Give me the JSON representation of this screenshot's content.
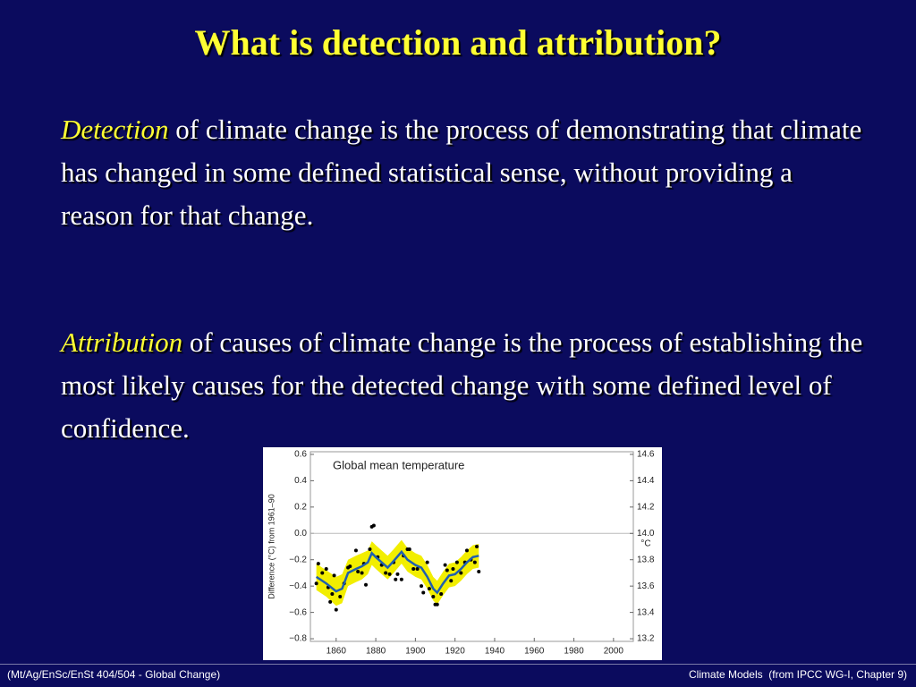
{
  "title": "What is detection and attribution?",
  "paragraphs": [
    {
      "term": "Detection",
      "text": " of climate change is the process of demonstrating that climate has changed in some defined statistical sense, without providing a reason for that change."
    },
    {
      "term": "Attribution",
      "text": " of causes of climate change is the process of establishing the most likely causes for the detected change with some defined level of confidence."
    }
  ],
  "figure": {
    "type": "line",
    "title": "Global mean temperature",
    "y_label": "Difference (°C) from 1961–90",
    "y2_label": "°C",
    "xlim": [
      1847,
      2010
    ],
    "xticks": [
      1860,
      1880,
      1900,
      1920,
      1940,
      1960,
      1980,
      2000
    ],
    "ylim": [
      -0.82,
      0.62
    ],
    "yticks": [
      0.6,
      0.4,
      0.2,
      {
        "value": 0,
        "label": "0.0"
      },
      {
        "value": -0.2,
        "label": "−0.2"
      },
      {
        "value": -0.4,
        "label": "−0.4"
      },
      {
        "value": -0.6,
        "label": "−0.6"
      },
      {
        "value": -0.8,
        "label": "−0.8"
      }
    ],
    "y2lim": [
      13.18,
      14.62
    ],
    "y2ticks": [
      14.6,
      14.4,
      14.2,
      {
        "value": 14,
        "label": "14.0"
      },
      13.8,
      13.6,
      13.4,
      13.2
    ],
    "zero_line": true,
    "smooth": {
      "color": "#1f5fb0",
      "band_color": "#f2ee00",
      "x": [
        1850,
        1855,
        1860,
        1863,
        1866,
        1870,
        1873,
        1876,
        1878,
        1880,
        1883,
        1886,
        1889,
        1893,
        1896,
        1900,
        1903,
        1906,
        1909,
        1911,
        1914,
        1917,
        1920,
        1923,
        1926,
        1929,
        1932
      ],
      "values": [
        -0.33,
        -0.38,
        -0.44,
        -0.42,
        -0.3,
        -0.27,
        -0.25,
        -0.22,
        -0.15,
        -0.18,
        -0.22,
        -0.26,
        -0.21,
        -0.14,
        -0.2,
        -0.24,
        -0.26,
        -0.33,
        -0.42,
        -0.45,
        -0.38,
        -0.32,
        -0.31,
        -0.27,
        -0.22,
        -0.18,
        -0.17
      ],
      "lower": [
        -0.43,
        -0.48,
        -0.55,
        -0.53,
        -0.4,
        -0.37,
        -0.35,
        -0.31,
        -0.24,
        -0.27,
        -0.31,
        -0.35,
        -0.3,
        -0.23,
        -0.29,
        -0.33,
        -0.35,
        -0.42,
        -0.51,
        -0.54,
        -0.47,
        -0.41,
        -0.4,
        -0.36,
        -0.31,
        -0.27,
        -0.26
      ],
      "upper": [
        -0.23,
        -0.28,
        -0.33,
        -0.31,
        -0.2,
        -0.17,
        -0.15,
        -0.13,
        -0.06,
        -0.09,
        -0.13,
        -0.17,
        -0.12,
        -0.05,
        -0.11,
        -0.15,
        -0.17,
        -0.24,
        -0.33,
        -0.36,
        -0.29,
        -0.23,
        -0.22,
        -0.18,
        -0.13,
        -0.09,
        -0.08
      ]
    },
    "annual": {
      "color": "#000000",
      "x": [
        1850,
        1851,
        1853,
        1855,
        1856,
        1857,
        1858,
        1859,
        1860,
        1862,
        1864,
        1866,
        1867,
        1870,
        1871,
        1873,
        1874,
        1875,
        1877,
        1878,
        1879,
        1881,
        1883,
        1885,
        1887,
        1889,
        1890,
        1891,
        1893,
        1894,
        1896,
        1897,
        1899,
        1901,
        1903,
        1904,
        1906,
        1907,
        1909,
        1910,
        1911,
        1913,
        1915,
        1916,
        1918,
        1919,
        1921,
        1923,
        1925,
        1926,
        1928,
        1930,
        1931,
        1932
      ],
      "values": [
        -0.38,
        -0.23,
        -0.3,
        -0.27,
        -0.41,
        -0.52,
        -0.46,
        -0.32,
        -0.58,
        -0.48,
        -0.38,
        -0.26,
        -0.25,
        -0.13,
        -0.29,
        -0.3,
        -0.23,
        -0.39,
        -0.12,
        0.05,
        0.06,
        -0.18,
        -0.24,
        -0.3,
        -0.31,
        -0.22,
        -0.35,
        -0.31,
        -0.35,
        -0.17,
        -0.12,
        -0.12,
        -0.27,
        -0.27,
        -0.4,
        -0.45,
        -0.22,
        -0.42,
        -0.48,
        -0.54,
        -0.54,
        -0.46,
        -0.24,
        -0.28,
        -0.36,
        -0.27,
        -0.22,
        -0.3,
        -0.22,
        -0.13,
        -0.2,
        -0.22,
        -0.1,
        -0.29
      ]
    }
  },
  "footer": {
    "left": "(Mt/Ag/EnSc/EnSt 404/504 - Global Change)",
    "right": "Climate Models  (from IPCC WG-I, Chapter 9)"
  }
}
